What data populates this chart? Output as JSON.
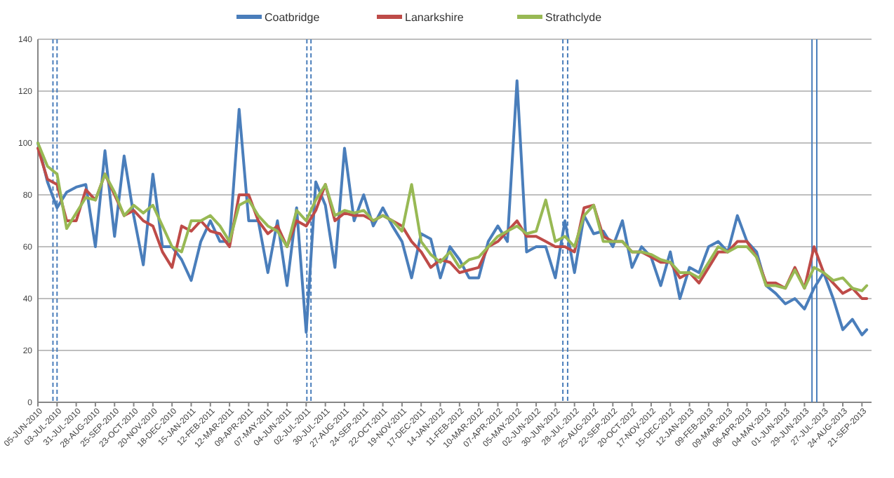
{
  "chart_data": {
    "type": "line",
    "x": [
      "2010-06-05",
      "2010-06-19",
      "2010-07-03",
      "2010-07-17",
      "2010-07-31",
      "2010-08-14",
      "2010-08-28",
      "2010-09-11",
      "2010-09-25",
      "2010-10-09",
      "2010-10-23",
      "2010-11-06",
      "2010-11-20",
      "2010-12-04",
      "2010-12-18",
      "2011-01-01",
      "2011-01-15",
      "2011-01-29",
      "2011-02-12",
      "2011-02-26",
      "2011-03-12",
      "2011-03-26",
      "2011-04-09",
      "2011-04-23",
      "2011-05-07",
      "2011-05-21",
      "2011-06-04",
      "2011-06-18",
      "2011-07-02",
      "2011-07-16",
      "2011-07-30",
      "2011-08-13",
      "2011-08-27",
      "2011-09-10",
      "2011-09-24",
      "2011-10-08",
      "2011-10-22",
      "2011-11-05",
      "2011-11-19",
      "2011-12-03",
      "2011-12-17",
      "2011-12-31",
      "2012-01-14",
      "2012-01-28",
      "2012-02-11",
      "2012-02-25",
      "2012-03-10",
      "2012-03-24",
      "2012-04-07",
      "2012-04-21",
      "2012-05-05",
      "2012-05-19",
      "2012-06-02",
      "2012-06-16",
      "2012-06-30",
      "2012-07-14",
      "2012-07-28",
      "2012-08-11",
      "2012-08-25",
      "2012-09-08",
      "2012-09-22",
      "2012-10-06",
      "2012-10-20",
      "2012-11-03",
      "2012-11-17",
      "2012-12-01",
      "2012-12-15",
      "2012-12-29",
      "2013-01-12",
      "2013-01-26",
      "2013-02-09",
      "2013-02-23",
      "2013-03-09",
      "2013-03-23",
      "2013-04-06",
      "2013-04-20",
      "2013-05-04",
      "2013-05-18",
      "2013-06-01",
      "2013-06-15",
      "2013-06-29",
      "2013-07-13",
      "2013-07-27",
      "2013-08-10",
      "2013-08-24",
      "2013-09-07",
      "2013-09-21",
      "2013-09-28"
    ],
    "series": [
      {
        "name": "Coatbridge",
        "color": "#4a7ebb",
        "values": [
          100,
          85,
          75,
          81,
          83,
          84,
          60,
          97,
          64,
          95,
          72,
          53,
          88,
          60,
          60,
          55,
          47,
          62,
          70,
          62,
          62,
          113,
          70,
          70,
          50,
          70,
          45,
          75,
          27,
          85,
          76,
          52,
          98,
          70,
          80,
          68,
          75,
          68,
          62,
          48,
          65,
          63,
          48,
          60,
          55,
          48,
          48,
          62,
          68,
          62,
          124,
          58,
          60,
          60,
          48,
          70,
          50,
          72,
          65,
          66,
          60,
          70,
          52,
          60,
          56,
          45,
          58,
          40,
          52,
          50,
          60,
          62,
          58,
          72,
          62,
          58,
          45,
          42,
          38,
          40,
          36,
          44,
          50,
          40,
          28,
          32,
          26,
          28
        ]
      },
      {
        "name": "Lanarkshire",
        "color": "#be4b48",
        "values": [
          98,
          86,
          84,
          70,
          70,
          82,
          78,
          88,
          80,
          72,
          74,
          70,
          68,
          58,
          52,
          68,
          66,
          70,
          66,
          65,
          60,
          80,
          80,
          70,
          65,
          68,
          60,
          70,
          68,
          74,
          84,
          70,
          73,
          72,
          72,
          70,
          72,
          70,
          68,
          62,
          58,
          52,
          55,
          54,
          50,
          51,
          52,
          60,
          62,
          66,
          70,
          64,
          64,
          62,
          60,
          60,
          58,
          75,
          76,
          64,
          62,
          62,
          58,
          58,
          56,
          54,
          54,
          48,
          50,
          46,
          52,
          58,
          58,
          62,
          62,
          56,
          46,
          46,
          44,
          52,
          44,
          60,
          50,
          46,
          42,
          44,
          40,
          40
        ]
      },
      {
        "name": "Strathclyde",
        "color": "#98b954",
        "values": [
          100,
          91,
          88,
          67,
          73,
          79,
          78,
          88,
          81,
          72,
          76,
          73,
          76,
          68,
          60,
          58,
          70,
          70,
          72,
          68,
          62,
          76,
          78,
          72,
          68,
          66,
          60,
          74,
          70,
          78,
          84,
          72,
          74,
          73,
          74,
          70,
          72,
          70,
          66,
          84,
          62,
          57,
          54,
          58,
          52,
          55,
          56,
          60,
          64,
          66,
          68,
          65,
          66,
          78,
          62,
          64,
          60,
          72,
          76,
          62,
          62,
          62,
          58,
          58,
          57,
          55,
          54,
          50,
          50,
          48,
          54,
          60,
          58,
          60,
          60,
          56,
          45,
          45,
          44,
          51,
          44,
          52,
          50,
          47,
          48,
          44,
          43,
          45
        ]
      }
    ],
    "xlim": [
      "2010-06-05",
      "2013-10-05"
    ],
    "xticks": [
      {
        "value": "2010-06-05",
        "label": "05-JUN-2010"
      },
      {
        "value": "2010-07-03",
        "label": "03-JUL-2010"
      },
      {
        "value": "2010-07-31",
        "label": "31-JUL-2010"
      },
      {
        "value": "2010-08-28",
        "label": "28-AUG-2010"
      },
      {
        "value": "2010-09-25",
        "label": "25-SEP-2010"
      },
      {
        "value": "2010-10-23",
        "label": "23-OCT-2010"
      },
      {
        "value": "2010-11-20",
        "label": "20-NOV-2010"
      },
      {
        "value": "2010-12-18",
        "label": "18-DEC-2010"
      },
      {
        "value": "2011-01-15",
        "label": "15-JAN-2011"
      },
      {
        "value": "2011-02-12",
        "label": "12-FEB-2011"
      },
      {
        "value": "2011-03-12",
        "label": "12-MAR-2011"
      },
      {
        "value": "2011-04-09",
        "label": "09-APR-2011"
      },
      {
        "value": "2011-05-07",
        "label": "07-MAY-2011"
      },
      {
        "value": "2011-06-04",
        "label": "04-JUN-2011"
      },
      {
        "value": "2011-07-02",
        "label": "02-JUL-2011"
      },
      {
        "value": "2011-07-30",
        "label": "30-JUL-2011"
      },
      {
        "value": "2011-08-27",
        "label": "27-AUG-2011"
      },
      {
        "value": "2011-09-24",
        "label": "24-SEP-2011"
      },
      {
        "value": "2011-10-22",
        "label": "22-OCT-2011"
      },
      {
        "value": "2011-11-19",
        "label": "19-NOV-2011"
      },
      {
        "value": "2011-12-17",
        "label": "17-DEC-2011"
      },
      {
        "value": "2012-01-14",
        "label": "14-JAN-2012"
      },
      {
        "value": "2012-02-11",
        "label": "11-FEB-2012"
      },
      {
        "value": "2012-03-10",
        "label": "10-MAR-2012"
      },
      {
        "value": "2012-04-07",
        "label": "07-APR-2012"
      },
      {
        "value": "2012-05-05",
        "label": "05-MAY-2012"
      },
      {
        "value": "2012-06-02",
        "label": "02-JUN-2012"
      },
      {
        "value": "2012-06-30",
        "label": "30-JUN-2012"
      },
      {
        "value": "2012-07-28",
        "label": "28-JUL-2012"
      },
      {
        "value": "2012-08-25",
        "label": "25-AUG-2012"
      },
      {
        "value": "2012-09-22",
        "label": "22-SEP-2012"
      },
      {
        "value": "2012-10-20",
        "label": "20-OCT-2012"
      },
      {
        "value": "2012-11-17",
        "label": "17-NOV-2012"
      },
      {
        "value": "2012-12-15",
        "label": "15-DEC-2012"
      },
      {
        "value": "2013-01-12",
        "label": "12-JAN-2013"
      },
      {
        "value": "2013-02-09",
        "label": "09-FEB-2013"
      },
      {
        "value": "2013-03-09",
        "label": "09-MAR-2013"
      },
      {
        "value": "2013-04-06",
        "label": "06-APR-2013"
      },
      {
        "value": "2013-05-04",
        "label": "04-MAY-2013"
      },
      {
        "value": "2013-06-01",
        "label": "01-JUN-2013"
      },
      {
        "value": "2013-06-29",
        "label": "29-JUN-2013"
      },
      {
        "value": "2013-07-27",
        "label": "27-JUL-2013"
      },
      {
        "value": "2013-08-24",
        "label": "24-AUG-2013"
      },
      {
        "value": "2013-09-21",
        "label": "21-SEP-2013"
      }
    ],
    "ylim": [
      0,
      140
    ],
    "yticks": [
      0,
      20,
      40,
      60,
      80,
      100,
      120,
      140
    ],
    "grid": "y",
    "legend": "top",
    "ref_lines": [
      {
        "axis": "x",
        "value": "2010-06-27",
        "color": "#4a7ebb",
        "line_style": "dashed"
      },
      {
        "axis": "x",
        "value": "2010-07-03",
        "color": "#4a7ebb",
        "line_style": "dashed"
      },
      {
        "axis": "x",
        "value": "2011-07-03",
        "color": "#4a7ebb",
        "line_style": "dashed"
      },
      {
        "axis": "x",
        "value": "2011-07-09",
        "color": "#4a7ebb",
        "line_style": "dashed"
      },
      {
        "axis": "x",
        "value": "2012-07-11",
        "color": "#4a7ebb",
        "line_style": "dashed"
      },
      {
        "axis": "x",
        "value": "2012-07-18",
        "color": "#4a7ebb",
        "line_style": "dashed"
      },
      {
        "axis": "x",
        "value": "2013-07-10",
        "color": "#4a7ebb",
        "line_style": "solid"
      },
      {
        "axis": "x",
        "value": "2013-07-17",
        "color": "#4a7ebb",
        "line_style": "solid"
      }
    ]
  }
}
